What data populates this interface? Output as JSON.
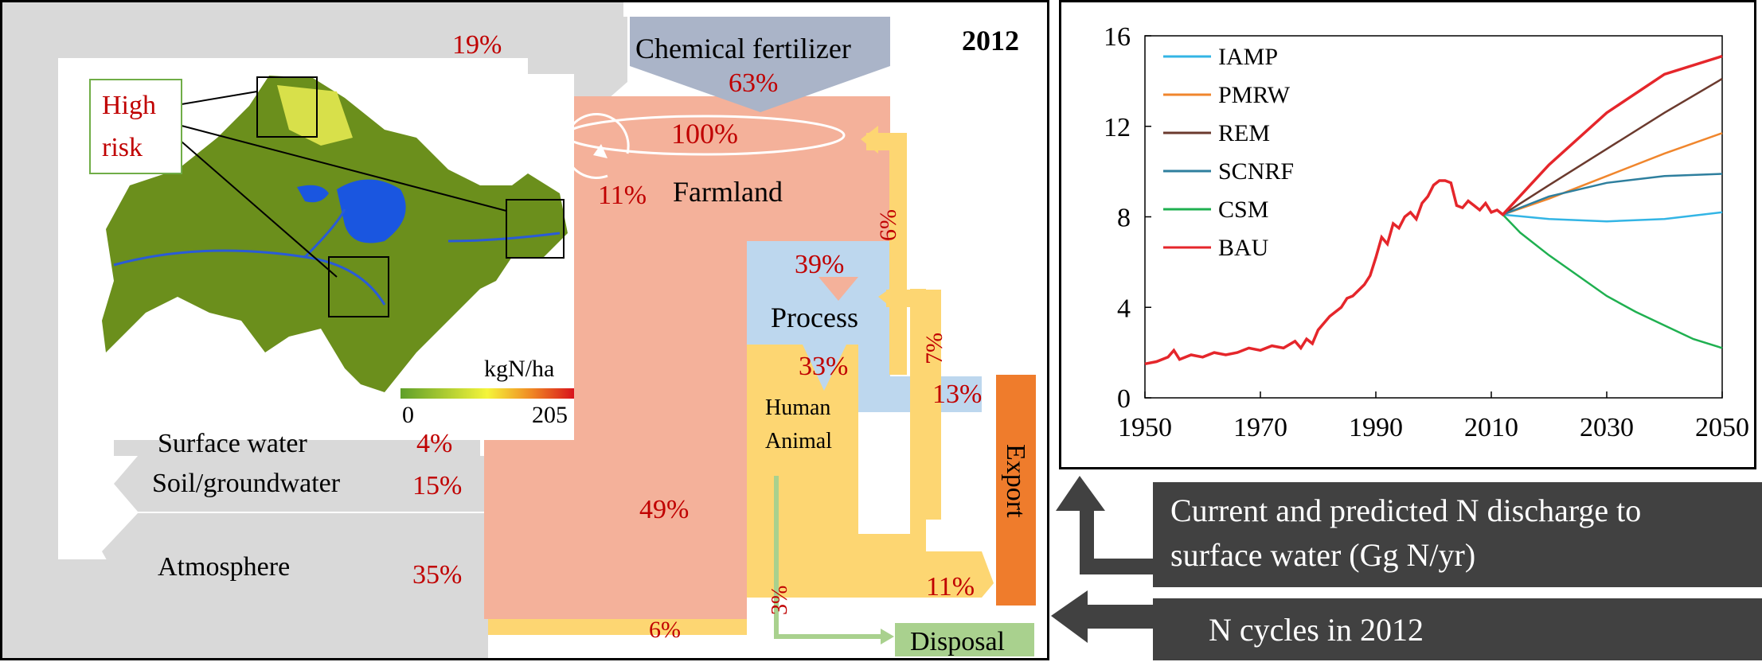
{
  "left_diagram": {
    "year": "2012",
    "fertilizer_label": "Chemical fertilizer",
    "fertilizer_pct": "63%",
    "top_flow_pct": "19%",
    "farmland_label": "Farmland",
    "farmland_pct": "100%",
    "farmland_recycle_pct": "11%",
    "farmland_to_process_pct": "39%",
    "process_label": "Process",
    "process_to_human_pct": "33%",
    "export_pct": "13%",
    "human_label": "Human",
    "animal_label": "Animal",
    "export_label": "Export",
    "return_flow_pct": "6%",
    "manure_return_pct": "7%",
    "main_loss_pct": "49%",
    "human_export_pct": "11%",
    "disposal_branch_pct": "3%",
    "bottom_flow_pct": "6%",
    "disposal_label": "Disposal",
    "losses": [
      {
        "label": "Surface water",
        "pct": "4%"
      },
      {
        "label": "Soil/groundwater",
        "pct": "15%"
      },
      {
        "label": "Atmosphere",
        "pct": "35%"
      }
    ],
    "map": {
      "risk_label_line1": "High",
      "risk_label_line2": "risk",
      "unit": "kgN/ha",
      "scale_min": "0",
      "scale_max": "205"
    }
  },
  "right_boxes": {
    "chart_caption_line1": "Current and predicted N discharge to",
    "chart_caption_line2": "surface water (Gg N/yr)",
    "cycles_caption": "N cycles in 2012"
  },
  "colors": {
    "grey_flow": "#d9d9d9",
    "fertilizer": "#aab4c8",
    "farmland": "#f4b19a",
    "process": "#bdd7ee",
    "human_animal": "#fdd672",
    "export": "#ef7c2c",
    "disposal": "#a9d18e",
    "pct_text": "#c00000"
  },
  "chart_data": {
    "type": "line",
    "x_ticks": [
      "1950",
      "1970",
      "1990",
      "2010",
      "2030",
      "2050"
    ],
    "y_ticks": [
      "0",
      "4",
      "8",
      "12",
      "16"
    ],
    "xlim": [
      1950,
      2050
    ],
    "ylim": [
      0,
      16
    ],
    "legend_position": "top-left",
    "series": [
      {
        "name": "IAMP",
        "color": "#33b5e5",
        "x": [
          2012,
          2020,
          2030,
          2040,
          2050
        ],
        "y": [
          8.1,
          7.9,
          7.8,
          7.9,
          8.2
        ]
      },
      {
        "name": "PMRW",
        "color": "#f0862d",
        "x": [
          2012,
          2020,
          2030,
          2040,
          2050
        ],
        "y": [
          8.1,
          8.8,
          9.8,
          10.8,
          11.7
        ]
      },
      {
        "name": "REM",
        "color": "#6b3a2e",
        "x": [
          2012,
          2020,
          2030,
          2040,
          2050
        ],
        "y": [
          8.1,
          9.4,
          11.0,
          12.6,
          14.1
        ]
      },
      {
        "name": "SCNRF",
        "color": "#2e7f9e",
        "x": [
          2012,
          2020,
          2030,
          2040,
          2050
        ],
        "y": [
          8.1,
          8.9,
          9.5,
          9.8,
          9.9
        ]
      },
      {
        "name": "CSM",
        "color": "#1fb050",
        "x": [
          2012,
          2015,
          2020,
          2025,
          2030,
          2035,
          2040,
          2045,
          2050
        ],
        "y": [
          8.1,
          7.3,
          6.3,
          5.4,
          4.5,
          3.8,
          3.2,
          2.6,
          2.2
        ]
      },
      {
        "name": "BAU",
        "color": "#e5262b",
        "x": [
          1950,
          1952,
          1954,
          1955,
          1956,
          1958,
          1960,
          1962,
          1964,
          1966,
          1968,
          1970,
          1972,
          1974,
          1976,
          1977,
          1978,
          1979,
          1980,
          1982,
          1984,
          1985,
          1986,
          1988,
          1989,
          1990,
          1991,
          1992,
          1993,
          1994,
          1995,
          1996,
          1997,
          1998,
          1999,
          2000,
          2001,
          2002,
          2003,
          2004,
          2005,
          2006,
          2007,
          2008,
          2009,
          2010,
          2011,
          2012,
          2020,
          2030,
          2040,
          2050
        ],
        "y": [
          1.5,
          1.6,
          1.8,
          2.1,
          1.7,
          1.9,
          1.8,
          2.0,
          1.9,
          2.0,
          2.2,
          2.1,
          2.3,
          2.2,
          2.5,
          2.2,
          2.6,
          2.4,
          3.0,
          3.6,
          4.0,
          4.4,
          4.5,
          5.0,
          5.4,
          6.2,
          7.1,
          6.8,
          7.7,
          7.5,
          8.0,
          8.2,
          7.9,
          8.6,
          8.9,
          9.4,
          9.6,
          9.6,
          9.5,
          8.5,
          8.4,
          8.7,
          8.5,
          8.3,
          8.6,
          8.2,
          8.3,
          8.1,
          10.3,
          12.6,
          14.3,
          15.1
        ]
      }
    ]
  }
}
